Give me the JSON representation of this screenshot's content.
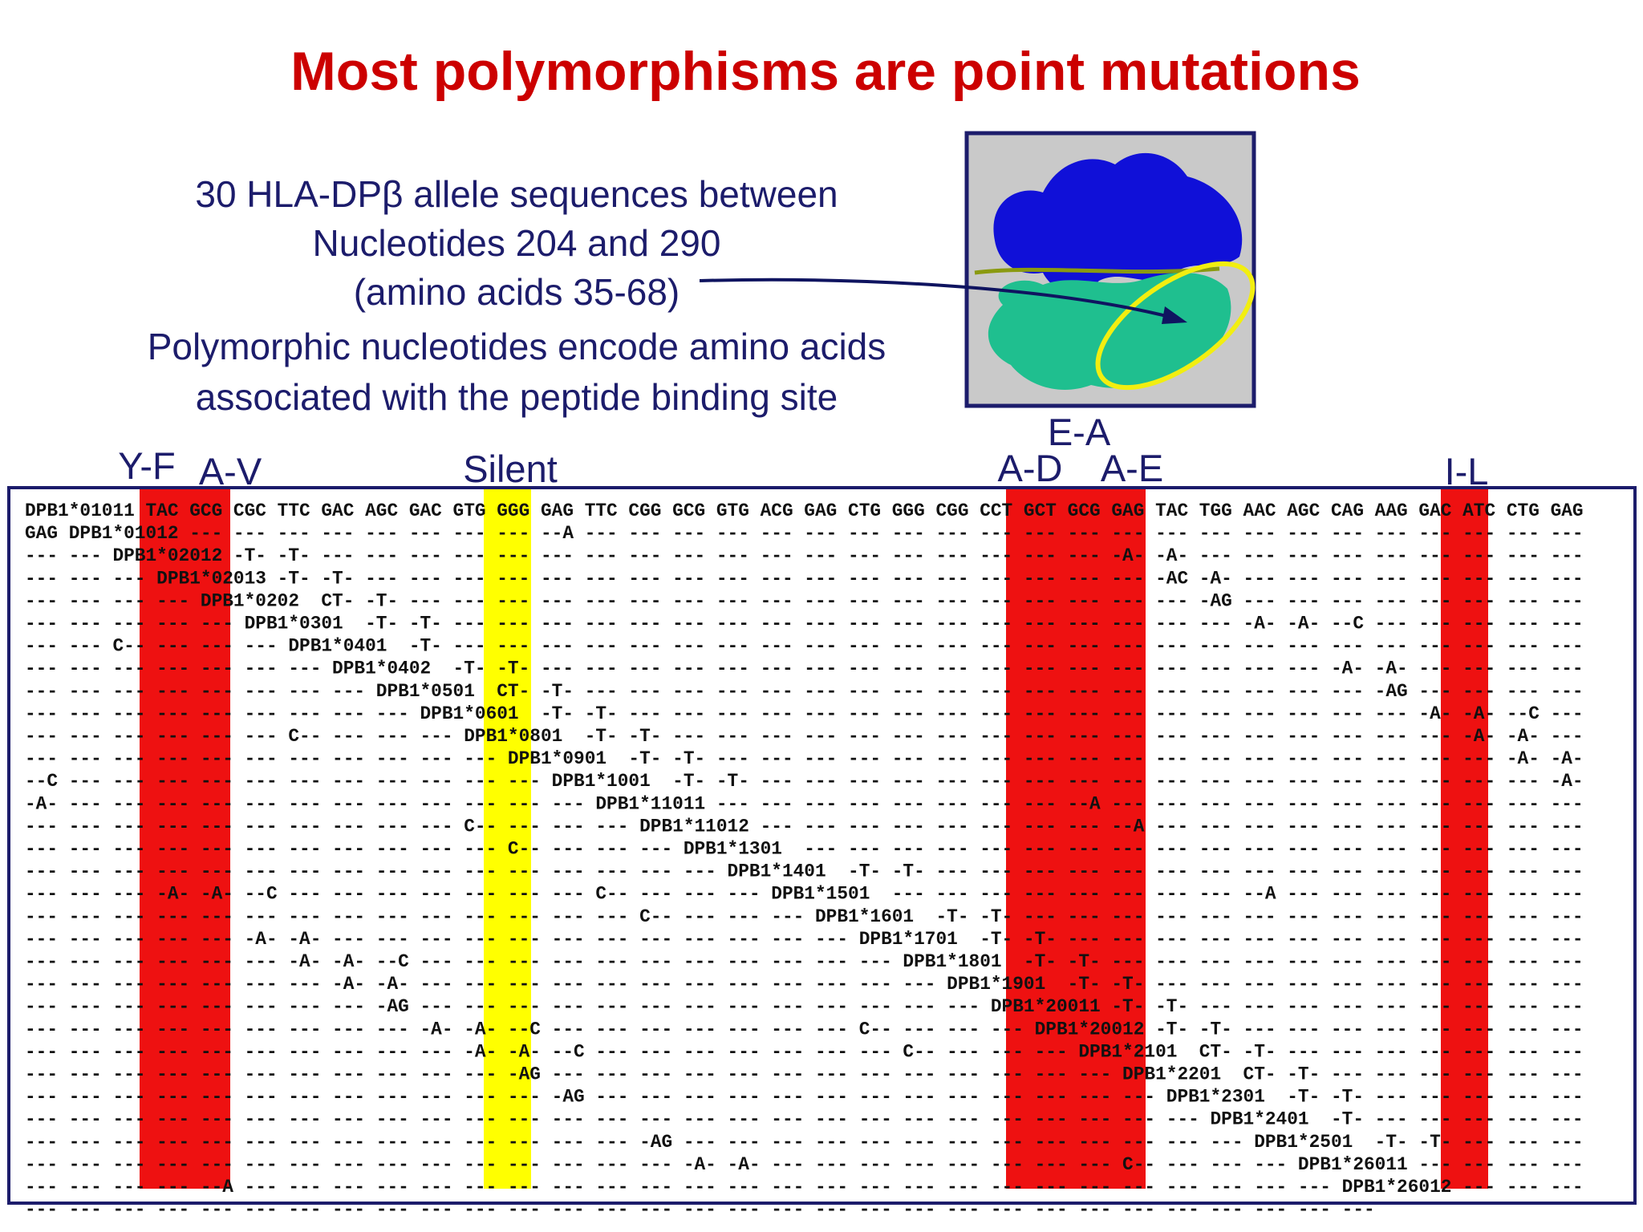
{
  "title": "Most polymorphisms are point mutations",
  "description": [
    "30 HLA-DPβ allele sequences between",
    "Nucleotides 204 and 290",
    "(amino acids 35-68)",
    "Polymorphic nucleotides encode amino acids",
    "associated with the peptide binding site"
  ],
  "column_labels": [
    "Y-F",
    "A-V",
    "Silent",
    "E-A",
    "A-D",
    "A-E",
    "I-L"
  ],
  "sequence_rows": [
    "DPB1*01011 TAC GCG CGC TTC GAC AGC GAC GTG GGG GAG TTC CGG GCG GTG ACG GAG CTG GGG CGG CCT GCT GCG GAG TAC TGG AAC AGC CAG AAG GAC ATC CTG GAG",
    "GAG DPB1*01012 --- --- --- --- --- --- --- --- --A --- --- --- --- --- --- --- --- --- --- --- --- --- --- --- --- --- --- --- --- --- --- ---",
    "--- --- DPB1*02012 -T- -T- --- --- --- --- --- --- --- --- --- --- --- --- --- --- --- --- --- --- -A- -A- --- --- --- --- --- --- --- --- ---",
    "--- --- --- DPB1*02013 -T- -T- --- --- --- --- --- --- --- --- --- --- --- --- --- --- --- --- --- --- -AC -A- --- --- --- --- --- --- --- ---",
    "--- --- --- --- DPB1*0202  CT- -T- --- --- --- --- --- --- --- --- --- --- --- --- --- --- --- --- --- --- -AG --- --- --- --- --- --- --- ---",
    "--- --- --- --- --- DPB1*0301  -T- -T- --- --- --- --- --- --- --- --- --- --- --- --- --- --- --- --- --- --- -A- -A- --C --- --- --- --- ---",
    "--- --- C-- --- --- --- DPB1*0401  -T- --- --- --- --- --- --- --- --- --- --- --- --- --- --- --- --- --- --- --- --- --- --- --- --- --- ---",
    "--- --- --- --- --- --- --- DPB1*0402  -T- -T- --- --- --- --- --- --- --- --- --- --- --- --- --- --- --- --- --- --- -A- -A- --- --- --- ---",
    "--- --- --- --- --- --- --- --- DPB1*0501  CT- -T- --- --- --- --- --- --- --- --- --- --- --- --- --- --- --- --- --- --- -AG --- --- --- ---",
    "--- --- --- --- --- --- --- --- --- DPB1*0601  -T- -T- --- --- --- --- --- --- --- --- --- --- --- --- --- --- --- --- --- --- -A- -A- --C ---",
    "--- --- --- --- --- --- C-- --- --- --- DPB1*0801  -T- -T- --- --- --- --- --- --- --- --- --- --- --- --- --- --- --- --- --- --- -A- -A- ---",
    "--- --- --- --- --- --- --- --- --- --- --- DPB1*0901  -T- -T- --- --- --- --- --- --- --- --- --- --- --- --- --- --- --- --- --- --- -A- -A-",
    "--C --- --- --- --- --- --- --- --- --- --- --- DPB1*1001  -T- -T- --- --- --- --- --- --- --- --- --- --- --- --- --- --- --- --- --- --- -A-",
    "-A- --- --- --- --- --- --- --- --- --- --- --- --- DPB1*11011 --- --- --- --- --- --- --- --- --A --- --- --- --- --- --- --- --- --- --- ---",
    "--- --- --- --- --- --- --- --- --- --- C-- --- --- --- DPB1*11012 --- --- --- --- --- --- --- --- --A --- --- --- --- --- --- --- --- --- ---",
    "--- --- --- --- --- --- --- --- --- --- --- C-- --- --- --- DPB1*1301  --- --- --- --- --- --- --- --- --- --- --- --- --- --- --- --- --- ---",
    "--- --- --- --- --- --- --- --- --- --- --- --- --- --- --- --- DPB1*1401  -T- -T- --- --- --- --- --- --- --- --- --- --- --- --- --- --- ---",
    "--- --- --- -A- -A- --C --- --- --- --- --- --- --- C-- --- --- --- DPB1*1501  --- --- --- --- --- --- --- --- --A --- --- --- --- --- --- ---",
    "--- --- --- --- --- --- --- --- --- --- --- --- --- --- C-- --- --- --- DPB1*1601  -T- -T- --- --- --- --- --- --- --- --- --- --- --- --- ---",
    "--- --- --- --- --- -A- -A- --- --- --- --- --- --- --- --- --- --- --- --- DPB1*1701  -T- -T- --- --- --- --- --- --- --- --- --- --- --- ---",
    "--- --- --- --- --- --- -A- -A- --C --- --- --- --- --- --- --- --- --- --- --- DPB1*1801  -T- -T- --- --- --- --- --- --- --- --- --- --- ---",
    "--- --- --- --- --- --- --- -A- -A- --- --- --- --- --- --- --- --- --- --- --- --- DPB1*1901  -T- -T- --- --- --- --- --- --- --- --- --- ---",
    "--- --- --- --- --- --- --- --- -AG --- --- --- --- --- --- --- --- --- --- --- --- --- DPB1*20011 -T- -T- --- --- --- --- --- --- --- --- ---",
    "--- --- --- --- --- --- --- --- --- -A- -A- --C --- --- --- --- --- --- --- C-- --- --- --- DPB1*20012 -T- -T- --- --- --- --- --- --- --- ---",
    "--- --- --- --- --- --- --- --- --- --- -A- -A- --C --- --- --- --- --- --- --- C-- --- --- --- DPB1*2101  CT- -T- --- --- --- --- --- --- ---",
    "--- --- --- --- --- --- --- --- --- --- --- -AG --- --- --- --- --- --- --- --- --- --- --- --- --- DPB1*2201  CT- -T- --- --- --- --- --- ---",
    "--- --- --- --- --- --- --- --- --- --- --- --- -AG --- --- --- --- --- --- --- --- --- --- --- --- --- DPB1*2301  -T- -T- --- --- --- --- ---",
    "--- --- --- --- --- --- --- --- --- --- --- --- --- --- --- --- --- --- --- --- --- --- --- --- --- --- --- DPB1*2401  -T- --- --- --- --- ---",
    "--- --- --- --- --- --- --- --- --- --- --- --- --- --- -AG --- --- --- --- --- --- --- --- --- --- --- --- --- DPB1*2501  -T- -T- --- --- ---",
    "--- --- --- --- --- --- --- --- --- --- --- --- --- --- --- -A- -A- --- --- --- --- --- --- --- --- C-- --- --- --- DPB1*26011 --- --- --- ---",
    "--- --- --- --- --A --- --- --- --- --- --- --- --- --- --- --- --- --- --- --- --- --- --- --- --- --- --- --- --- --- DPB1*26012 --- --- ---",
    "--- --- --- --- --- --- --- --- --- --- --- --- --- --- --- --- --- --- --- --- --- --- --- --- --- --- --- --- --- --- ---"
  ]
}
